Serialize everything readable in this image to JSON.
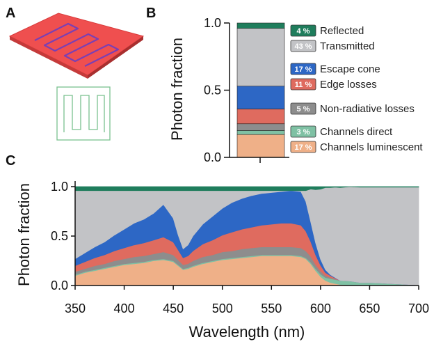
{
  "panels": {
    "a": "A",
    "b": "B",
    "c": "C"
  },
  "colors": {
    "reflected": "#1f7d5c",
    "transmitted": "#c2c3c6",
    "escape_cone": "#2d67c5",
    "edge_losses": "#df6b5f",
    "nonradiative": "#8d8d8d",
    "channels_direct": "#7fc1a4",
    "channels_luminescent": "#efb088",
    "device_red": "#ef4f4f",
    "device_channel": "#7a3fb4",
    "outline_green": "#79c18e"
  },
  "chart_data": [
    {
      "type": "bar",
      "stacked": true,
      "ylabel": "Photon fraction",
      "ylim": [
        0,
        1.0
      ],
      "yticks": [
        "0.0",
        "0.5",
        "1.0"
      ],
      "segments": [
        {
          "key": "channels_luminescent",
          "badge": "17 %",
          "label": "Channels luminescent",
          "value": 0.17
        },
        {
          "key": "channels_direct",
          "badge": "3 %",
          "label": "Channels direct",
          "value": 0.03
        },
        {
          "key": "nonradiative",
          "badge": "5 %",
          "label": "Non-radiative losses",
          "value": 0.05
        },
        {
          "key": "edge_losses",
          "badge": "11 %",
          "label": "Edge losses",
          "value": 0.11
        },
        {
          "key": "escape_cone",
          "badge": "17 %",
          "label": "Escape cone",
          "value": 0.17
        },
        {
          "key": "transmitted",
          "badge": "43 %",
          "label": "Transmitted",
          "value": 0.43
        },
        {
          "key": "reflected",
          "badge": "4 %",
          "label": "Reflected",
          "value": 0.04
        }
      ]
    },
    {
      "type": "area",
      "stacked": true,
      "xlabel": "Wavelength (nm)",
      "ylabel": "Photon fraction",
      "xlim": [
        350,
        700
      ],
      "ylim": [
        0,
        1.0
      ],
      "xticks": [
        "350",
        "400",
        "450",
        "500",
        "550",
        "600",
        "650",
        "700"
      ],
      "yticks": [
        "0.0",
        "0.5",
        "1.0"
      ],
      "x": [
        350,
        360,
        370,
        380,
        390,
        400,
        410,
        420,
        430,
        440,
        450,
        455,
        460,
        465,
        470,
        480,
        490,
        500,
        510,
        520,
        530,
        540,
        550,
        560,
        570,
        580,
        585,
        590,
        595,
        600,
        605,
        610,
        615,
        620,
        630,
        640,
        650,
        660,
        670,
        680,
        690,
        700
      ],
      "series": [
        {
          "key": "channels_luminescent",
          "values": [
            0.1,
            0.13,
            0.15,
            0.17,
            0.19,
            0.21,
            0.22,
            0.23,
            0.25,
            0.26,
            0.24,
            0.2,
            0.16,
            0.17,
            0.19,
            0.22,
            0.24,
            0.26,
            0.27,
            0.28,
            0.29,
            0.3,
            0.3,
            0.3,
            0.3,
            0.29,
            0.27,
            0.22,
            0.15,
            0.09,
            0.05,
            0.03,
            0.02,
            0.01,
            0.005,
            0.0,
            0.0,
            0.0,
            0.0,
            0.0,
            0.0,
            0.0
          ]
        },
        {
          "key": "channels_direct",
          "values": [
            0.01,
            0.01,
            0.01,
            0.01,
            0.01,
            0.01,
            0.01,
            0.01,
            0.01,
            0.01,
            0.01,
            0.01,
            0.01,
            0.01,
            0.01,
            0.01,
            0.01,
            0.01,
            0.01,
            0.01,
            0.01,
            0.01,
            0.01,
            0.01,
            0.01,
            0.01,
            0.01,
            0.015,
            0.02,
            0.025,
            0.03,
            0.04,
            0.04,
            0.04,
            0.04,
            0.03,
            0.03,
            0.025,
            0.02,
            0.015,
            0.01,
            0.005
          ]
        },
        {
          "key": "nonradiative",
          "values": [
            0.03,
            0.03,
            0.04,
            0.04,
            0.05,
            0.05,
            0.06,
            0.06,
            0.06,
            0.07,
            0.06,
            0.05,
            0.04,
            0.04,
            0.05,
            0.06,
            0.06,
            0.07,
            0.07,
            0.08,
            0.08,
            0.08,
            0.08,
            0.08,
            0.08,
            0.08,
            0.07,
            0.06,
            0.04,
            0.03,
            0.02,
            0.01,
            0.005,
            0.0,
            0.0,
            0.0,
            0.0,
            0.0,
            0.0,
            0.0,
            0.0,
            0.0
          ]
        },
        {
          "key": "edge_losses",
          "values": [
            0.06,
            0.07,
            0.08,
            0.09,
            0.1,
            0.11,
            0.12,
            0.13,
            0.14,
            0.15,
            0.13,
            0.1,
            0.07,
            0.08,
            0.1,
            0.13,
            0.15,
            0.17,
            0.19,
            0.2,
            0.21,
            0.22,
            0.23,
            0.24,
            0.24,
            0.23,
            0.2,
            0.15,
            0.1,
            0.06,
            0.03,
            0.02,
            0.01,
            0.0,
            0.0,
            0.0,
            0.0,
            0.0,
            0.0,
            0.0,
            0.0,
            0.0
          ]
        },
        {
          "key": "escape_cone",
          "values": [
            0.07,
            0.09,
            0.11,
            0.13,
            0.16,
            0.19,
            0.22,
            0.24,
            0.27,
            0.33,
            0.24,
            0.15,
            0.09,
            0.11,
            0.15,
            0.2,
            0.24,
            0.27,
            0.3,
            0.31,
            0.32,
            0.32,
            0.32,
            0.32,
            0.33,
            0.34,
            0.3,
            0.2,
            0.12,
            0.06,
            0.03,
            0.01,
            0.005,
            0.0,
            0.0,
            0.0,
            0.0,
            0.0,
            0.0,
            0.0,
            0.0,
            0.0
          ]
        },
        {
          "key": "transmitted",
          "values": [
            0.69,
            0.63,
            0.57,
            0.52,
            0.45,
            0.39,
            0.33,
            0.29,
            0.23,
            0.14,
            0.28,
            0.45,
            0.59,
            0.55,
            0.46,
            0.34,
            0.26,
            0.18,
            0.12,
            0.08,
            0.05,
            0.03,
            0.02,
            0.01,
            0.0,
            0.01,
            0.11,
            0.33,
            0.54,
            0.71,
            0.83,
            0.88,
            0.915,
            0.94,
            0.955,
            0.965,
            0.965,
            0.97,
            0.975,
            0.98,
            0.985,
            0.99
          ]
        },
        {
          "key": "reflected",
          "values": [
            0.04,
            0.04,
            0.04,
            0.04,
            0.04,
            0.04,
            0.04,
            0.04,
            0.04,
            0.04,
            0.04,
            0.04,
            0.04,
            0.04,
            0.04,
            0.04,
            0.04,
            0.04,
            0.04,
            0.04,
            0.04,
            0.04,
            0.04,
            0.04,
            0.04,
            0.04,
            0.04,
            0.04,
            0.04,
            0.04,
            0.04,
            0.04,
            0.04,
            0.04,
            0.04,
            0.04,
            0.04,
            0.04,
            0.04,
            0.04,
            0.04,
            0.04
          ]
        }
      ]
    }
  ]
}
